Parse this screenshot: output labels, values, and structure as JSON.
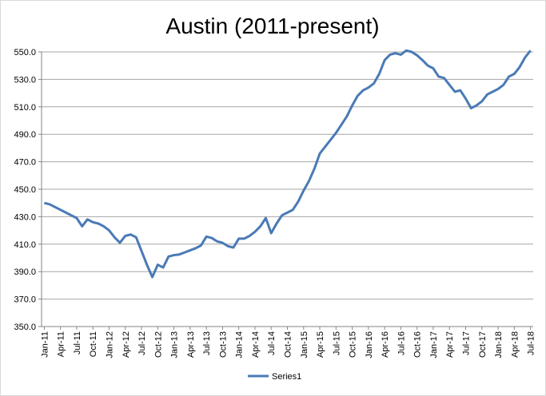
{
  "chart_data": {
    "type": "line",
    "title": "Austin (2011-present)",
    "categories": [
      "Jan-11",
      null,
      null,
      "Apr-11",
      null,
      null,
      "Jul-11",
      null,
      null,
      "Oct-11",
      null,
      null,
      "Jan-12",
      null,
      null,
      "Apr-12",
      null,
      null,
      "Jul-12",
      null,
      null,
      "Oct-12",
      null,
      null,
      "Jan-13",
      null,
      null,
      "Apr-13",
      null,
      null,
      "Jul-13",
      null,
      null,
      "Oct-13",
      null,
      null,
      "Jan-14",
      null,
      null,
      "Apr-14",
      null,
      null,
      "Jul-14",
      null,
      null,
      "Oct-14",
      null,
      null,
      "Jan-15",
      null,
      null,
      "Apr-15",
      null,
      null,
      "Jul-15",
      null,
      null,
      "Oct-15",
      null,
      null,
      "Jan-16",
      null,
      null,
      "Apr-16",
      null,
      null,
      "Jul-16",
      null,
      null,
      "Oct-16",
      null,
      null,
      "Jan-17",
      null,
      null,
      "Apr-17",
      null,
      null,
      "Jul-17",
      null,
      null,
      "Oct-17",
      null,
      null,
      "Jan-18",
      null,
      null,
      "Apr-18",
      null,
      null,
      "Jul-18"
    ],
    "series": [
      {
        "name": "Series1",
        "color": "#4a7ab5",
        "values": [
          440,
          439,
          437,
          435,
          433,
          431,
          429,
          423,
          428,
          426,
          425,
          423,
          420,
          415,
          411,
          416,
          417,
          415,
          405,
          395,
          386,
          395,
          393,
          401,
          402,
          402.5,
          404,
          405.5,
          407,
          409,
          415.5,
          414.5,
          412,
          411,
          408.5,
          407.5,
          414,
          414,
          416,
          419,
          423,
          429,
          418,
          425,
          431,
          433,
          435,
          441,
          449,
          456,
          465,
          476,
          481,
          486,
          491,
          497,
          503,
          511,
          518,
          522,
          524,
          527,
          534,
          544,
          548,
          549,
          548,
          551,
          550,
          547.5,
          544,
          540,
          538,
          532,
          531,
          526,
          521,
          522,
          516,
          509,
          511,
          514,
          519,
          521,
          523,
          526,
          532,
          534,
          539,
          546,
          551
        ]
      }
    ],
    "ylim": [
      350,
      550
    ],
    "yticks": [
      {
        "value": 350,
        "label": "350.0"
      },
      {
        "value": 370,
        "label": "370.0"
      },
      {
        "value": 390,
        "label": "390.0"
      },
      {
        "value": 410,
        "label": "410.0"
      },
      {
        "value": 430,
        "label": "430.0"
      },
      {
        "value": 450,
        "label": "450.0"
      },
      {
        "value": 470,
        "label": "470.0"
      },
      {
        "value": 490,
        "label": "490.0"
      },
      {
        "value": 510,
        "label": "510.0"
      },
      {
        "value": 530,
        "label": "530.0"
      },
      {
        "value": 550,
        "label": "550.0"
      }
    ],
    "grid": true,
    "legend": "bottom"
  }
}
